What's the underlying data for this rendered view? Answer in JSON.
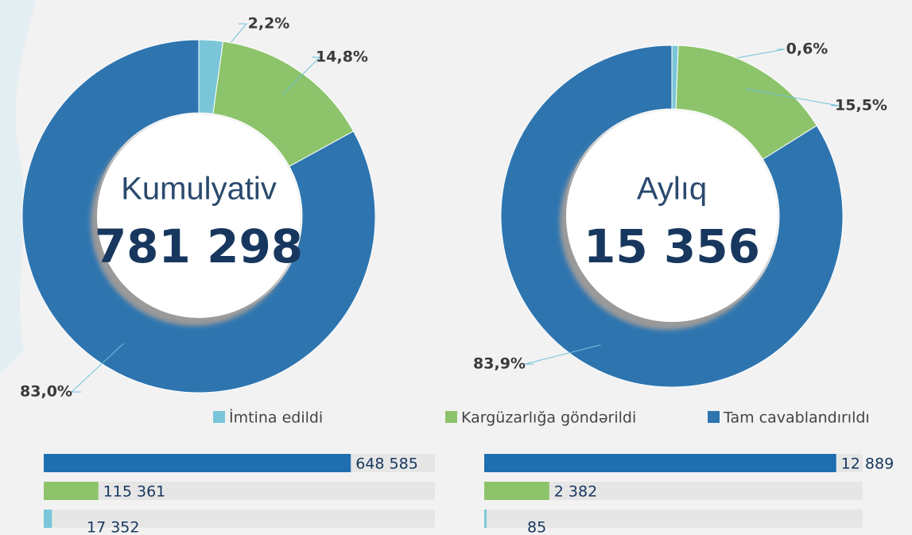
{
  "chart_data": [
    {
      "type": "donut",
      "title": "Kumulyativ",
      "total": 781298,
      "total_label": "781 298",
      "categories": [
        "İmtina edildi",
        "Kargüzarlığa göndərildi",
        "Tam cavablandırıldı"
      ],
      "colors": [
        "#7ac6d8",
        "#8dc46b",
        "#2e75b0"
      ],
      "values": [
        2.2,
        14.8,
        83.0
      ],
      "value_labels": [
        "2,2%",
        "14,8%",
        "83,0%"
      ]
    },
    {
      "type": "donut",
      "title": "Aylıq",
      "total": 15356,
      "total_label": "15 356",
      "colors": [
        "#7ac6d8",
        "#8dc46b",
        "#2e75b0"
      ],
      "values": [
        0.6,
        15.5,
        83.9
      ],
      "value_labels": [
        "0,6%",
        "15,5%",
        "83,9%"
      ]
    },
    {
      "type": "hbar",
      "categories": [
        null,
        null,
        null
      ],
      "colors": [
        "#1f6fb0",
        "#8dc46b",
        "#7ac6d8"
      ],
      "values": [
        648585,
        115361,
        17352
      ],
      "value_labels": [
        "648 585",
        "115 361",
        "17 352"
      ]
    },
    {
      "type": "hbar",
      "categories": [
        null,
        null,
        null
      ],
      "colors": [
        "#1f6fb0",
        "#8dc46b",
        "#7ac6d8"
      ],
      "values": [
        12889,
        2382,
        85
      ],
      "value_labels": [
        "12 889",
        "2 382",
        "85"
      ]
    }
  ]
}
